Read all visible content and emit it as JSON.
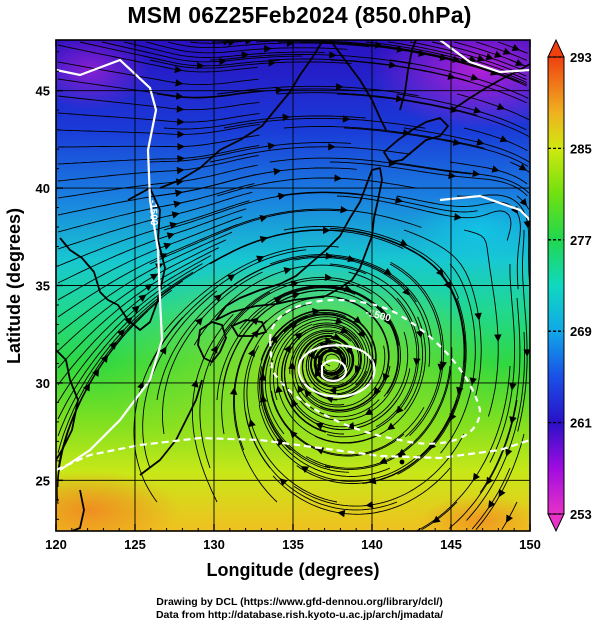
{
  "title": "MSM 06Z25Feb2024 (850.0hPa)",
  "credits": {
    "line1": "Drawing by DCL (https://www.gfd-dennou.org/library/dcl/)",
    "line2": "Data from http://database.rish.kyoto-u.ac.jp/arch/jmadata/"
  },
  "map": {
    "xlabel": "Longitude (degrees)",
    "ylabel": "Latitude  (degrees)",
    "xlim": [
      120,
      150
    ],
    "ylim": [
      22.4,
      47.6
    ],
    "xticks": [
      "120",
      "125",
      "130",
      "135",
      "140",
      "145",
      "150"
    ],
    "yticks": [
      "25",
      "30",
      "35",
      "40",
      "45"
    ],
    "contour_labels": [
      "-1500",
      "-1500"
    ]
  },
  "colorbar": {
    "ticks": [
      "293",
      "285",
      "277",
      "269",
      "261",
      "253"
    ],
    "min": 253,
    "max": 293,
    "colors": [
      "#e832c8",
      "#b40ee0",
      "#2a10c8",
      "#1a4fe8",
      "#10a8e8",
      "#10d8c8",
      "#20d850",
      "#60e010",
      "#c0e810",
      "#f0d020",
      "#f09020",
      "#f05010"
    ]
  },
  "colors": {
    "cyclone_contour": "#ffffff",
    "coastline": "#000000",
    "streamline": "#000000"
  }
}
